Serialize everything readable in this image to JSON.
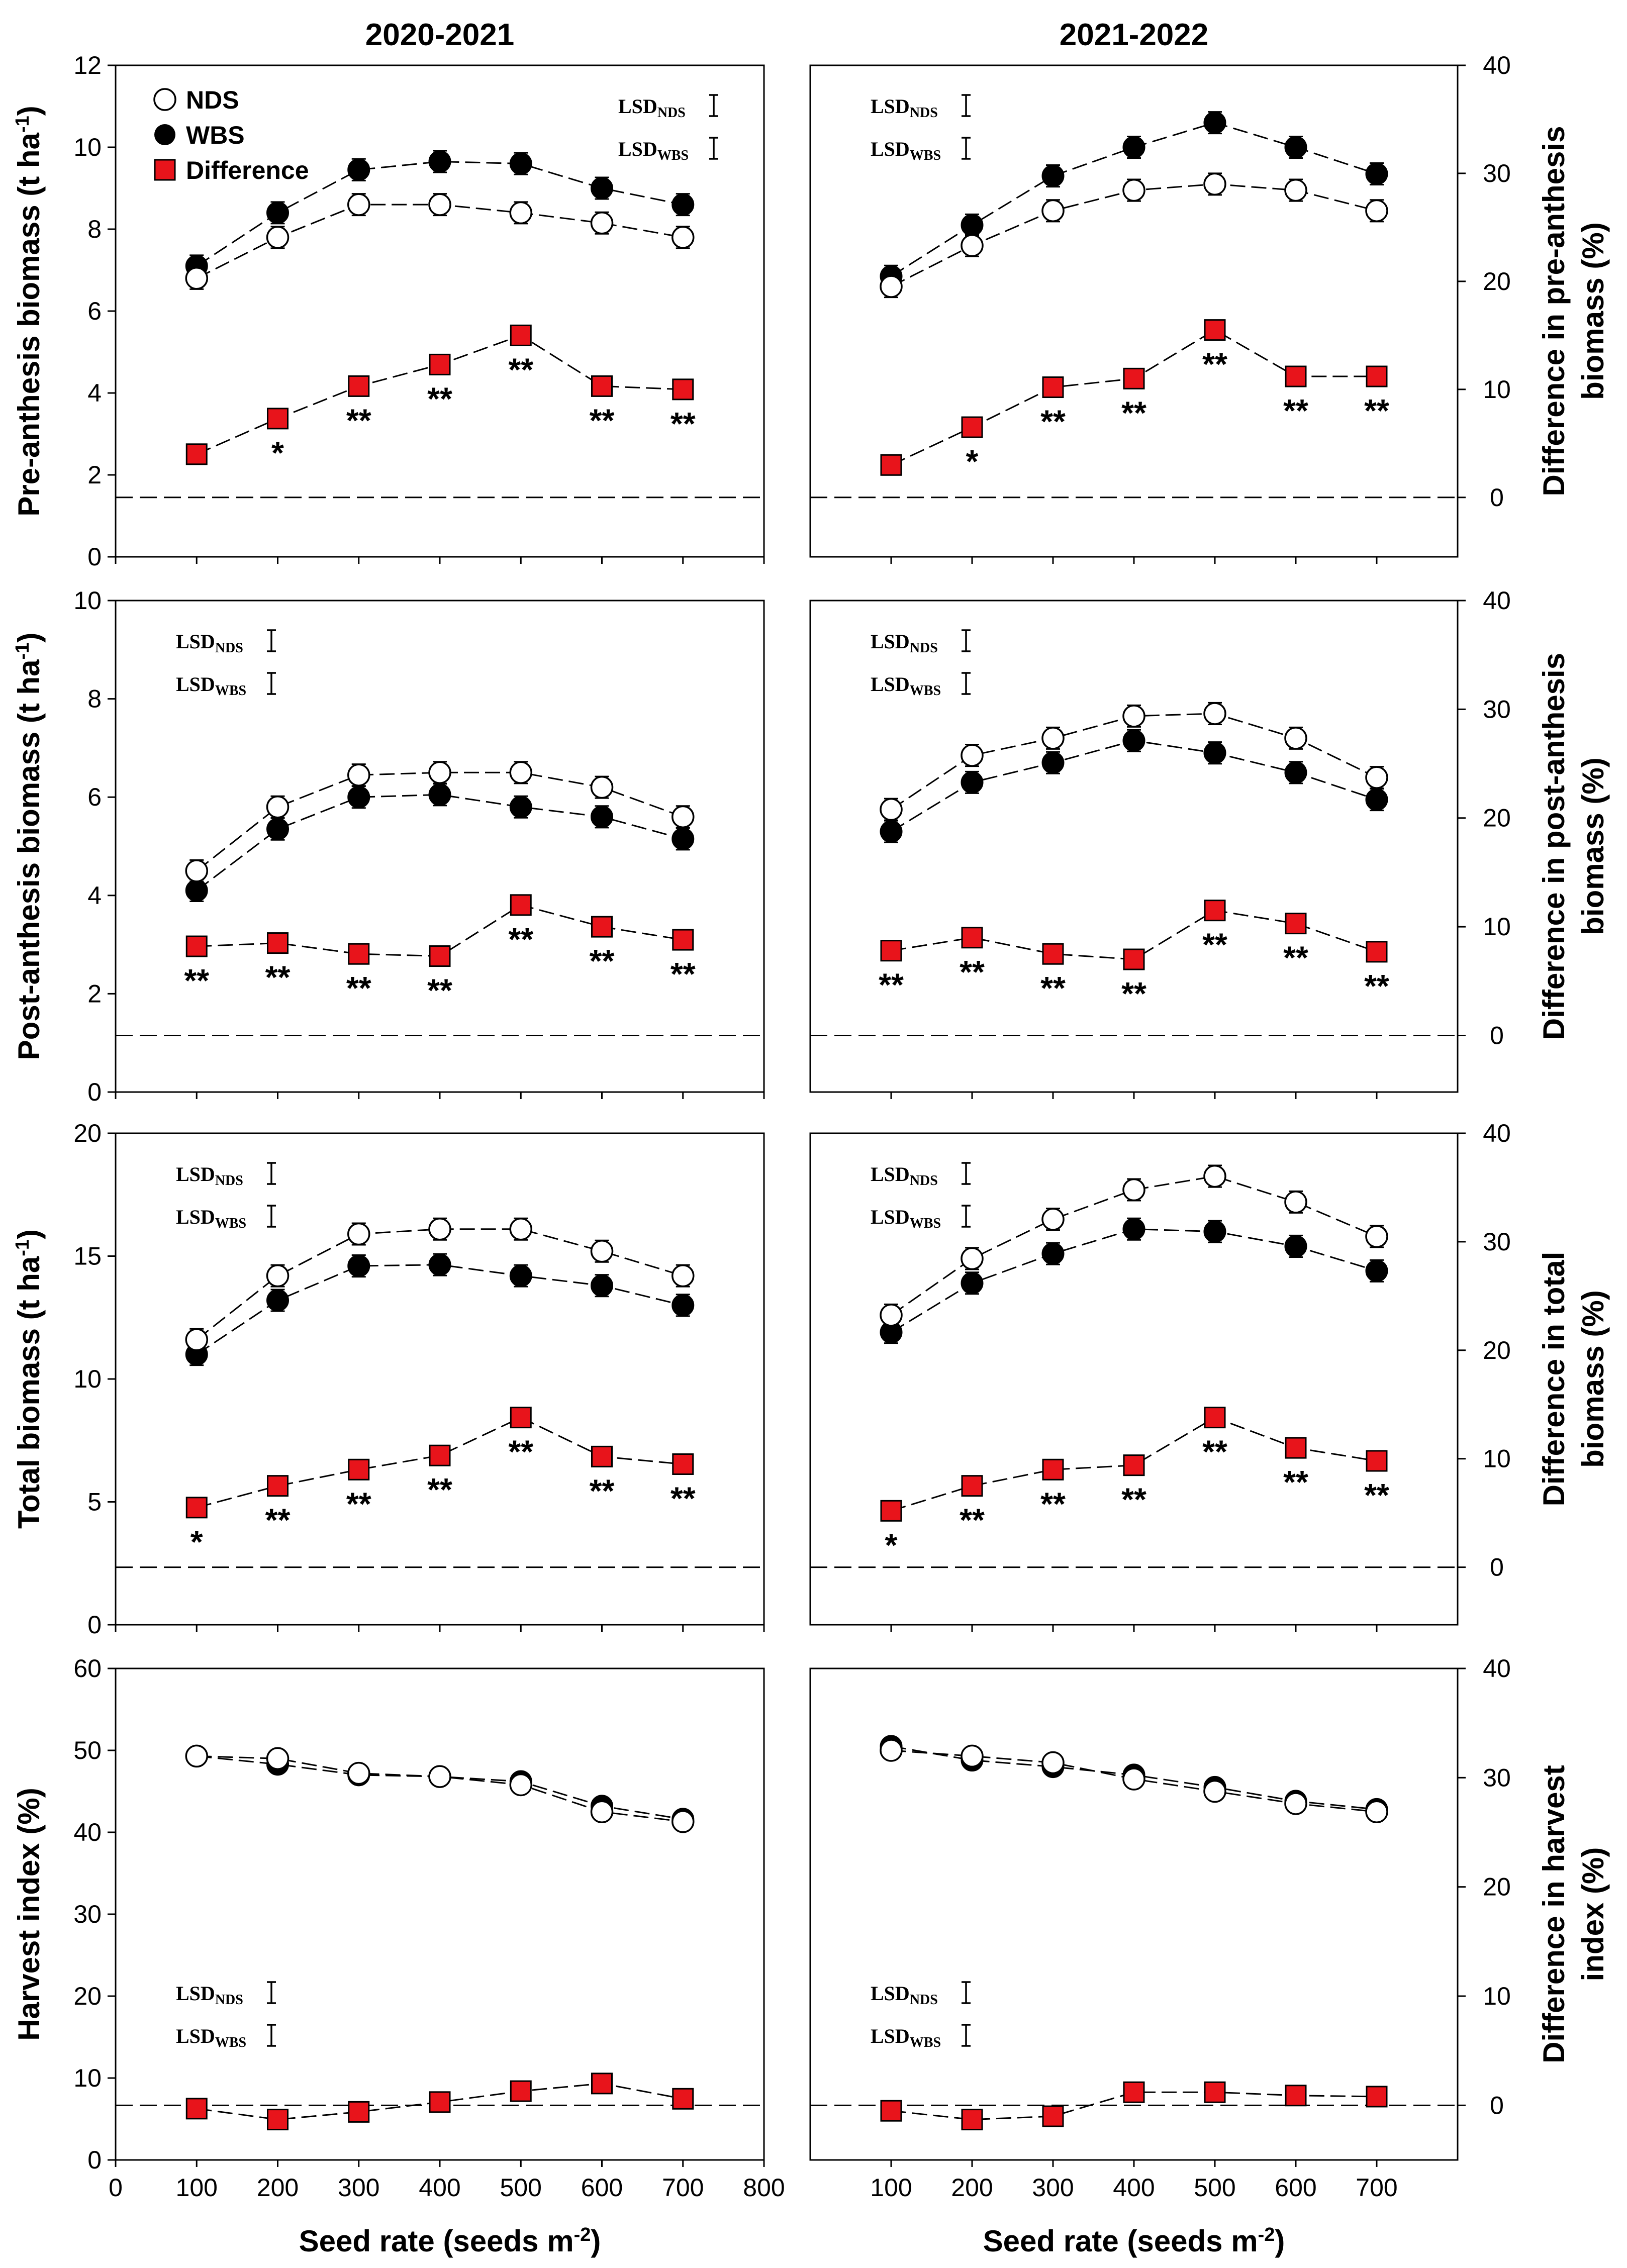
{
  "figure": {
    "column_titles": [
      "2020-2021",
      "2021-2022"
    ],
    "x_axis_label": "Seed rate (seeds m",
    "x_axis_label_sup": "-2",
    "x_axis_label_end": ")",
    "x_ticks_left": [
      0,
      100,
      200,
      300,
      400,
      500,
      600,
      700,
      800
    ],
    "x_ticks_right": [
      100,
      200,
      300,
      400,
      500,
      600,
      700
    ],
    "legend": [
      {
        "label": "NDS",
        "marker": "open-circle"
      },
      {
        "label": "WBS",
        "marker": "filled-circle"
      },
      {
        "label": "Difference",
        "marker": "red-square"
      }
    ],
    "lsd_label": "LSD",
    "lsd_sub_nds": "NDS",
    "lsd_sub_wbs": "WBS",
    "colors": {
      "difference": "#e8141b",
      "axis": "#000000",
      "background": "#ffffff"
    }
  },
  "chart_data": [
    {
      "type": "line",
      "row": 0,
      "col": 0,
      "season": "2020-2021",
      "ylabel": "Pre-anthesis biomass (t ha",
      "ylabel_sup": "-1",
      "ylabel_end": ")",
      "ylim": [
        0,
        12
      ],
      "yticks": [
        0,
        2,
        4,
        6,
        8,
        10,
        12
      ],
      "y2lim": [
        -5.5,
        40
      ],
      "y2ticks": [],
      "x": [
        100,
        200,
        300,
        400,
        500,
        600,
        700
      ],
      "series": [
        {
          "name": "NDS",
          "values": [
            6.8,
            7.8,
            8.6,
            8.6,
            8.4,
            8.15,
            7.8
          ]
        },
        {
          "name": "WBS",
          "values": [
            7.1,
            8.4,
            9.45,
            9.65,
            9.6,
            9.0,
            8.6
          ]
        },
        {
          "name": "Difference",
          "values": [
            4.0,
            7.3,
            10.3,
            12.3,
            15.0,
            10.3,
            10.0
          ],
          "axis": "right"
        }
      ],
      "significance": [
        "",
        "*",
        "**",
        "**",
        "**",
        "**",
        "**"
      ],
      "lsd_show": [
        "NDS",
        "WBS"
      ]
    },
    {
      "type": "line",
      "row": 0,
      "col": 1,
      "season": "2021-2022",
      "ylabel_right": "Difference in pre-anthesis",
      "ylabel_right2": "biomass (%)",
      "ylim": [
        0,
        12
      ],
      "yticks": [],
      "y2lim": [
        -5.5,
        40
      ],
      "y2ticks": [
        0,
        10,
        20,
        30,
        40
      ],
      "x": [
        100,
        200,
        300,
        400,
        500,
        600,
        700
      ],
      "series": [
        {
          "name": "NDS",
          "values": [
            6.6,
            7.6,
            8.45,
            8.95,
            9.1,
            8.95,
            8.45
          ]
        },
        {
          "name": "WBS",
          "values": [
            6.85,
            8.1,
            9.3,
            10.0,
            10.6,
            10.0,
            9.35
          ]
        },
        {
          "name": "Difference",
          "values": [
            3.0,
            6.5,
            10.2,
            11.0,
            15.5,
            11.2,
            11.2
          ],
          "axis": "right"
        }
      ],
      "significance": [
        "",
        "*",
        "**",
        "**",
        "**",
        "**",
        "**"
      ],
      "lsd_show": [
        "NDS",
        "WBS"
      ]
    },
    {
      "type": "line",
      "row": 1,
      "col": 0,
      "season": "2020-2021",
      "ylabel": "Post-anthesis biomass (t ha",
      "ylabel_sup": "-1",
      "ylabel_end": ")",
      "ylim": [
        0,
        10
      ],
      "yticks": [
        0,
        2,
        4,
        6,
        8,
        10
      ],
      "y2lim": [
        -5.2,
        40
      ],
      "y2ticks": [],
      "x": [
        100,
        200,
        300,
        400,
        500,
        600,
        700
      ],
      "series": [
        {
          "name": "NDS",
          "values": [
            4.5,
            5.8,
            6.45,
            6.5,
            6.5,
            6.2,
            5.6
          ]
        },
        {
          "name": "WBS",
          "values": [
            4.1,
            5.35,
            6.0,
            6.05,
            5.8,
            5.6,
            5.15
          ]
        },
        {
          "name": "Difference",
          "values": [
            8.2,
            8.5,
            7.5,
            7.3,
            12.0,
            10.0,
            8.8
          ],
          "axis": "right"
        }
      ],
      "significance": [
        "**",
        "**",
        "**",
        "**",
        "**",
        "**",
        "**"
      ],
      "lsd_show": [
        "NDS",
        "WBS"
      ]
    },
    {
      "type": "line",
      "row": 1,
      "col": 1,
      "season": "2021-2022",
      "ylabel_right": "Difference in post-anthesis",
      "ylabel_right2": "biomass (%)",
      "ylim": [
        0,
        10
      ],
      "yticks": [],
      "y2lim": [
        -5.2,
        40
      ],
      "y2ticks": [
        0,
        10,
        20,
        30,
        40
      ],
      "x": [
        100,
        200,
        300,
        400,
        500,
        600,
        700
      ],
      "series": [
        {
          "name": "NDS",
          "values": [
            5.75,
            6.85,
            7.2,
            7.65,
            7.7,
            7.2,
            6.4
          ]
        },
        {
          "name": "WBS",
          "values": [
            5.3,
            6.3,
            6.7,
            7.15,
            6.9,
            6.5,
            5.95
          ]
        },
        {
          "name": "Difference",
          "values": [
            7.8,
            9.0,
            7.5,
            7.0,
            11.5,
            10.3,
            7.7
          ],
          "axis": "right"
        }
      ],
      "significance": [
        "**",
        "**",
        "**",
        "**",
        "**",
        "**",
        "**"
      ],
      "lsd_show": [
        "NDS",
        "WBS"
      ]
    },
    {
      "type": "line",
      "row": 2,
      "col": 0,
      "season": "2020-2021",
      "ylabel": "Total biomass (t ha",
      "ylabel_sup": "-1",
      "ylabel_end": ")",
      "ylim": [
        0,
        20
      ],
      "yticks": [
        0,
        5,
        10,
        15,
        20
      ],
      "y2lim": [
        -5.3,
        40
      ],
      "y2ticks": [],
      "x": [
        100,
        200,
        300,
        400,
        500,
        600,
        700
      ],
      "series": [
        {
          "name": "NDS",
          "values": [
            11.6,
            14.2,
            15.9,
            16.1,
            16.1,
            15.2,
            14.2
          ]
        },
        {
          "name": "WBS",
          "values": [
            11.0,
            13.2,
            14.6,
            14.65,
            14.2,
            13.8,
            13.0
          ]
        },
        {
          "name": "Difference",
          "values": [
            5.5,
            7.5,
            9.0,
            10.3,
            13.8,
            10.2,
            9.5
          ],
          "axis": "right"
        }
      ],
      "significance": [
        "*",
        "**",
        "**",
        "**",
        "**",
        "**",
        "**"
      ],
      "lsd_show": [
        "NDS",
        "WBS"
      ]
    },
    {
      "type": "line",
      "row": 2,
      "col": 1,
      "season": "2021-2022",
      "ylabel_right": "Difference in total",
      "ylabel_right2": "biomass (%)",
      "ylim": [
        0,
        20
      ],
      "yticks": [],
      "y2lim": [
        -5.3,
        40
      ],
      "y2ticks": [
        0,
        10,
        20,
        30,
        40
      ],
      "x": [
        100,
        200,
        300,
        400,
        500,
        600,
        700
      ],
      "series": [
        {
          "name": "NDS",
          "values": [
            12.6,
            14.9,
            16.5,
            17.7,
            18.25,
            17.2,
            15.8
          ]
        },
        {
          "name": "WBS",
          "values": [
            11.9,
            13.9,
            15.1,
            16.1,
            16.0,
            15.4,
            14.4
          ]
        },
        {
          "name": "Difference",
          "values": [
            5.2,
            7.5,
            9.0,
            9.4,
            13.8,
            11.0,
            9.8
          ],
          "axis": "right"
        }
      ],
      "significance": [
        "*",
        "**",
        "**",
        "**",
        "**",
        "**",
        "**"
      ],
      "lsd_show": [
        "NDS",
        "WBS"
      ]
    },
    {
      "type": "line",
      "row": 3,
      "col": 0,
      "season": "2020-2021",
      "ylabel": "Harvest index (%)",
      "ylim": [
        0,
        60
      ],
      "yticks": [
        0,
        10,
        20,
        30,
        40,
        50,
        60
      ],
      "y2lim": [
        -5,
        40
      ],
      "y2ticks": [],
      "x": [
        100,
        200,
        300,
        400,
        500,
        600,
        700
      ],
      "series": [
        {
          "name": "NDS",
          "values": [
            49.3,
            49.0,
            47.2,
            46.8,
            45.8,
            42.5,
            41.3
          ]
        },
        {
          "name": "WBS",
          "values": [
            49.3,
            48.3,
            47.0,
            46.8,
            46.2,
            43.2,
            41.6
          ]
        },
        {
          "name": "Difference",
          "values": [
            -0.3,
            -1.3,
            -0.6,
            0.3,
            1.3,
            2.0,
            0.6
          ],
          "axis": "right"
        }
      ],
      "significance": [
        "",
        "",
        "",
        "",
        "",
        "",
        ""
      ],
      "lsd_show": [
        "NDS",
        "WBS"
      ]
    },
    {
      "type": "line",
      "row": 3,
      "col": 1,
      "season": "2021-2022",
      "ylabel_right": "Difference in harvest",
      "ylabel_right2": "index (%)",
      "ylim": [
        0,
        60
      ],
      "yticks": [],
      "y2lim": [
        -5,
        40
      ],
      "y2ticks": [
        0,
        10,
        20,
        30,
        40
      ],
      "x": [
        100,
        200,
        300,
        400,
        500,
        600,
        700
      ],
      "series": [
        {
          "name": "NDS",
          "values": [
            50.0,
            49.3,
            48.5,
            46.5,
            45.0,
            43.5,
            42.5
          ]
        },
        {
          "name": "WBS",
          "values": [
            50.5,
            48.8,
            48.0,
            47.0,
            45.5,
            43.8,
            42.8
          ]
        },
        {
          "name": "Difference",
          "values": [
            -0.5,
            -1.3,
            -1.0,
            1.2,
            1.2,
            0.9,
            0.8
          ],
          "axis": "right"
        }
      ],
      "significance": [
        "",
        "",
        "",
        "",
        "",
        "",
        ""
      ],
      "lsd_show": [
        "NDS",
        "WBS"
      ]
    }
  ]
}
